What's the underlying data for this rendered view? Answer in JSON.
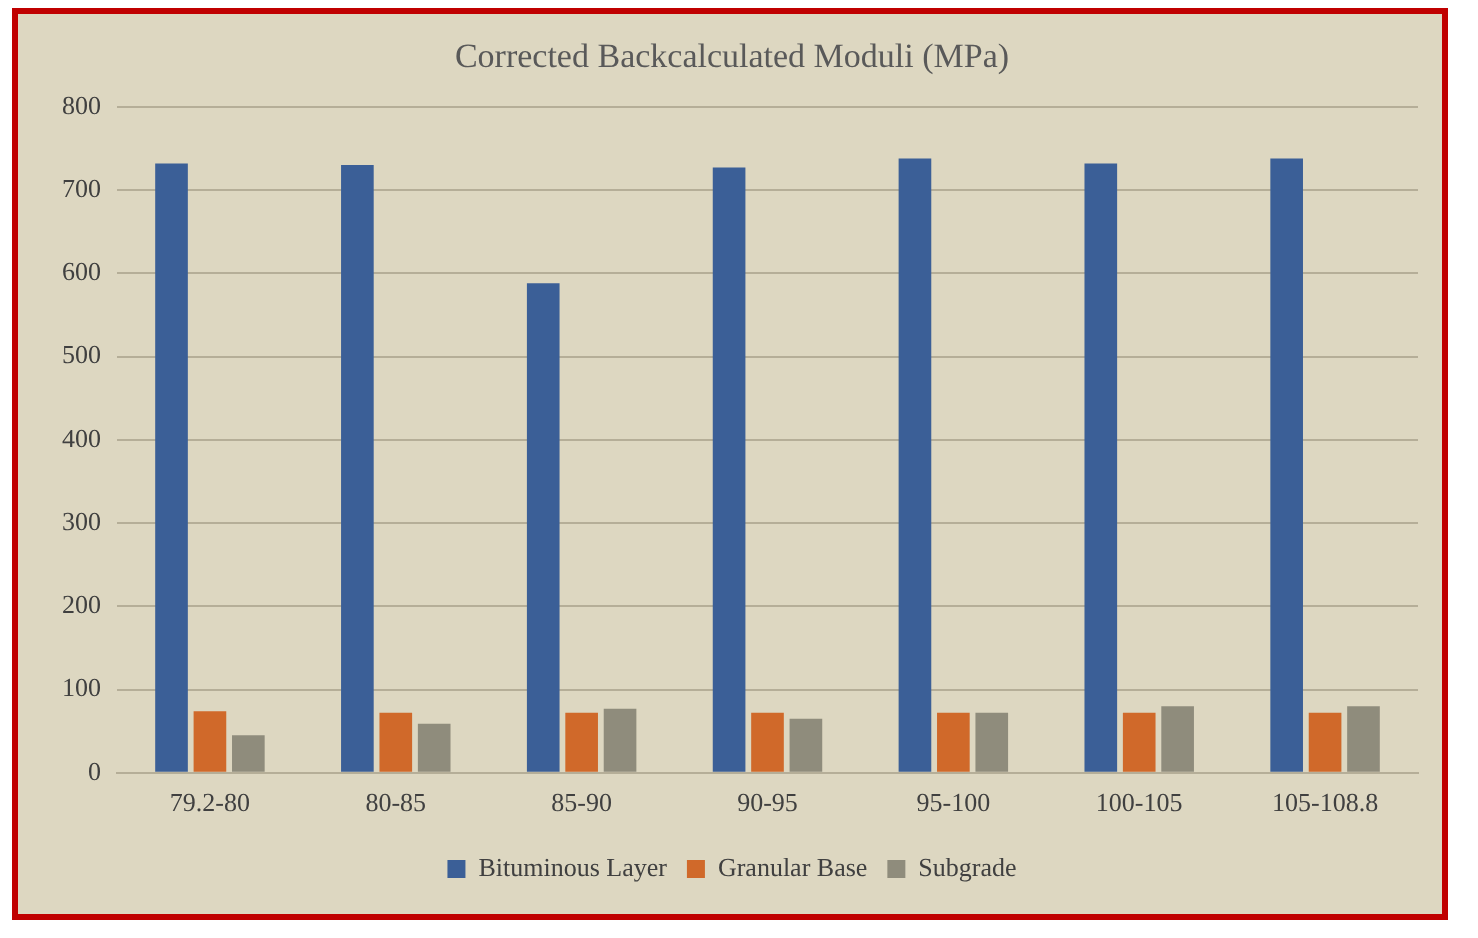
{
  "chart_data": {
    "type": "bar",
    "title": "Corrected Backcalculated Moduli (MPa)",
    "categories": [
      "79.2-80",
      "80-85",
      "85-90",
      "90-95",
      "95-100",
      "100-105",
      "105-108.8"
    ],
    "series": [
      {
        "name": "Bituminous Layer",
        "color": "#3b5f97",
        "values": [
          732,
          730,
          588,
          727,
          738,
          732,
          738
        ]
      },
      {
        "name": "Granular Base",
        "color": "#d0692a",
        "values": [
          74,
          72,
          72,
          72,
          72,
          72,
          72
        ]
      },
      {
        "name": "Subgrade",
        "color": "#8f8c7c",
        "values": [
          45,
          59,
          77,
          65,
          72,
          80,
          80
        ]
      }
    ],
    "ylim": [
      0,
      800
    ],
    "yticks": [
      0,
      100,
      200,
      300,
      400,
      500,
      600,
      700,
      800
    ],
    "grid": "y",
    "legend": "bottom"
  }
}
